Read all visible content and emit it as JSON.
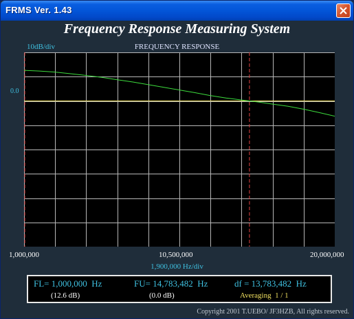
{
  "window": {
    "title": "FRMS   Ver. 1.43"
  },
  "app_title": "Frequency Response Measuring System",
  "scale_label": "10dB/div",
  "chart_title": "FREQUENCY RESPONSE",
  "ref_label": "0.0",
  "x_labels": {
    "left": "1,000,000",
    "mid": "10,500,000",
    "right": "20,000,000"
  },
  "x_div": "1,900,000  Hz/div",
  "info": {
    "fl": "FL= 1,000,000  Hz",
    "fu": "FU= 14,783,482  Hz",
    "df": "df = 13,783,482  Hz",
    "fl_db": "(12.6 dB)",
    "fu_db": "(0.0 dB)",
    "averaging": "Averaging  1 / 1"
  },
  "copyright": "Copyright 2001 T.UEBO/ JF3HZB, All rights reserved.",
  "colors": {
    "trace": "#3ddc3d",
    "ref_line": "#f0e060",
    "marker": "#e04040",
    "grid": "#b8b8b8",
    "accent": "#3fc0e0"
  },
  "chart_data": {
    "type": "line",
    "title": "FREQUENCY RESPONSE",
    "xlabel": "1,900,000  Hz/div",
    "ylabel": "10dB/div",
    "xlim": [
      1000000,
      20000000
    ],
    "ylim": [
      -60,
      20
    ],
    "grid": true,
    "series": [
      {
        "x": [
          1000000,
          1950000,
          2900000,
          3850000,
          4800000,
          5750000,
          6700000,
          7650000,
          8600000,
          9550000,
          10500000,
          11450000,
          12400000,
          13350000,
          14300000,
          14783482,
          15250000,
          16200000,
          17150000,
          18100000,
          19050000,
          20000000
        ],
        "values": [
          12.6,
          12.3,
          11.9,
          11.2,
          10.5,
          9.7,
          8.7,
          7.8,
          6.7,
          5.6,
          4.5,
          3.4,
          2.2,
          1.2,
          0.4,
          0.0,
          -0.4,
          -1.3,
          -2.2,
          -3.4,
          -4.8,
          -6.3
        ]
      }
    ],
    "reference_level": 0.0,
    "markers": [
      1000000,
      14783482
    ]
  }
}
